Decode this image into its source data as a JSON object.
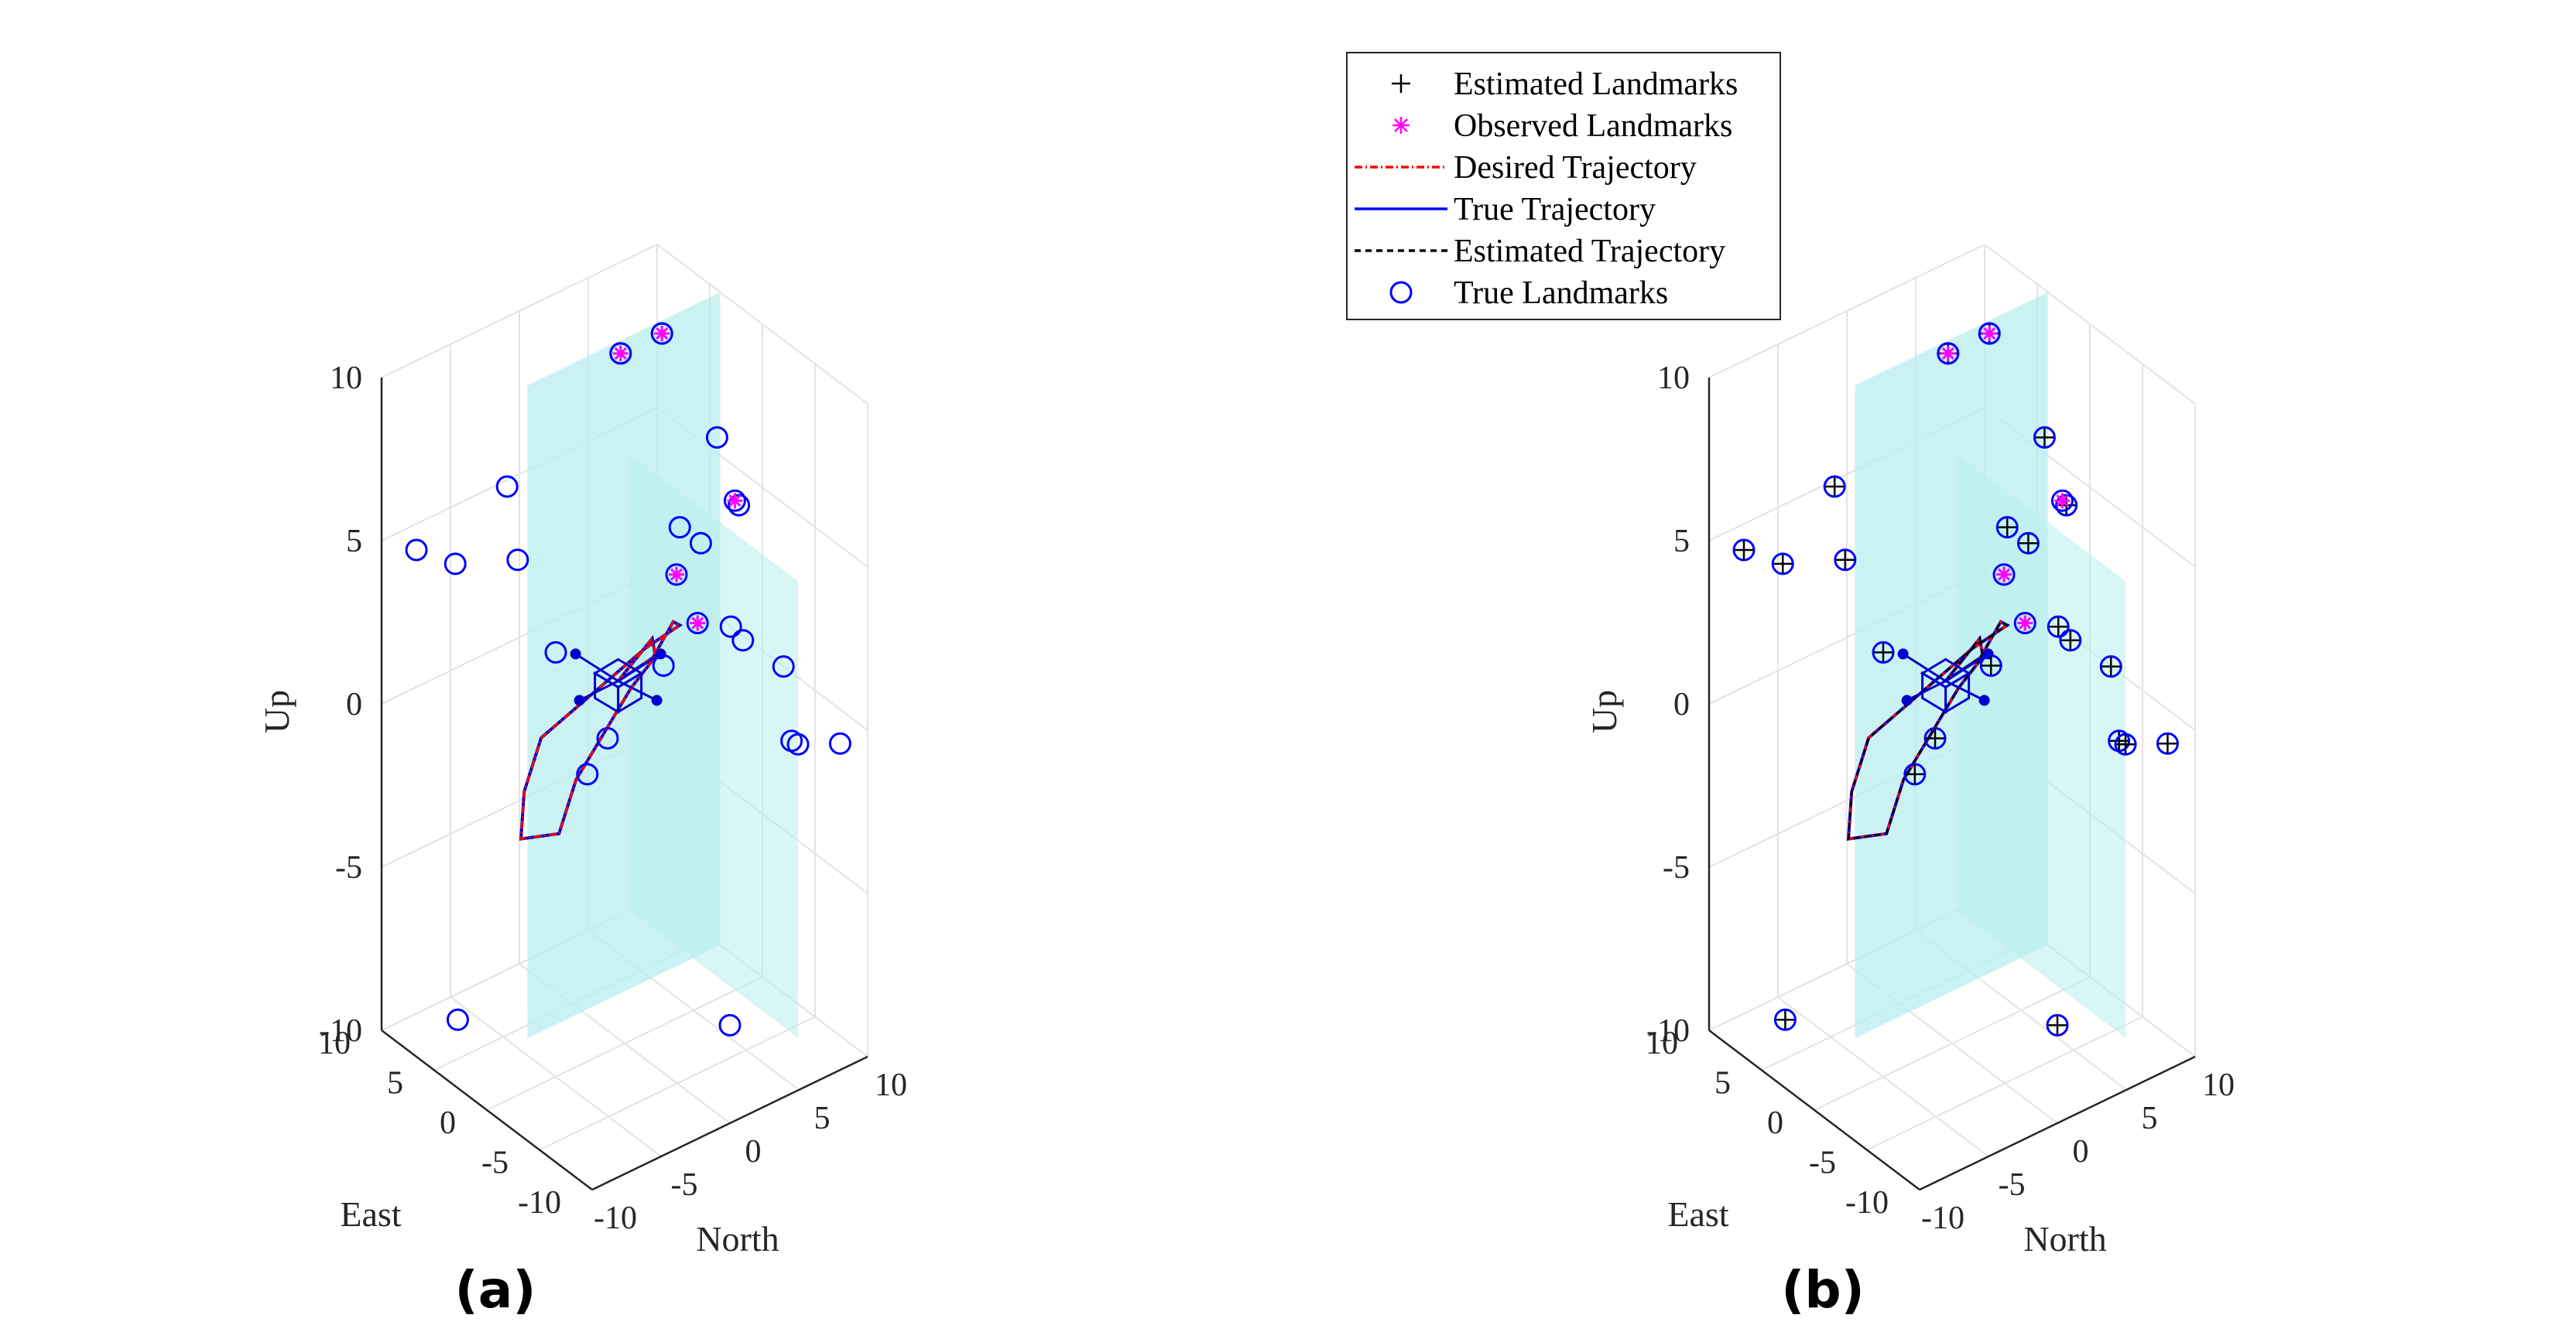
{
  "chart_data": [
    {
      "type": "scatter3d",
      "panel_label": "a",
      "zlabel": "Up",
      "xlabel": "East",
      "ylabel": "North",
      "xlim": [
        -10,
        10
      ],
      "ylim": [
        -10,
        10
      ],
      "zlim": [
        -10,
        10
      ],
      "xticks": [
        "-10",
        "-5",
        "0",
        "5",
        "10"
      ],
      "yticks": [
        "-10",
        "-5",
        "0",
        "5",
        "10"
      ],
      "zticks": [
        "-10",
        "-5",
        "0",
        "5",
        "10"
      ],
      "grid": true,
      "show_estimated_landmarks": false,
      "true_landmarks": [
        [
          8,
          -9,
          5
        ],
        [
          3,
          -10,
          6
        ],
        [
          8,
          -6,
          -10
        ],
        [
          2,
          -7,
          8
        ],
        [
          1,
          -7,
          6
        ],
        [
          0,
          -5,
          3
        ],
        [
          -3,
          -5,
          0
        ],
        [
          -1,
          -2,
          0
        ],
        [
          -5,
          -1,
          3
        ],
        [
          3,
          2,
          10
        ],
        [
          3,
          5,
          10
        ],
        [
          0,
          4,
          5
        ],
        [
          -2,
          4,
          5
        ],
        [
          -6,
          4,
          3
        ],
        [
          -3,
          6,
          6
        ],
        [
          3,
          9,
          6
        ],
        [
          3,
          10,
          0
        ],
        [
          -2,
          10,
          0
        ],
        [
          -8,
          6,
          0
        ],
        [
          -6,
          8,
          -1
        ],
        [
          -10,
          8,
          0
        ],
        [
          -10,
          0,
          -7
        ]
      ],
      "observed_landmarks": [
        [
          3,
          2,
          10
        ],
        [
          3,
          5,
          10
        ],
        [
          -1,
          3,
          4
        ],
        [
          0,
          8,
          5
        ],
        [
          -3,
          3,
          3
        ]
      ],
      "vehicle_position": [
        -2,
        -2,
        2
      ]
    },
    {
      "type": "scatter3d",
      "panel_label": "b",
      "zlabel": "Up",
      "xlabel": "East",
      "ylabel": "North",
      "xlim": [
        -10,
        10
      ],
      "ylim": [
        -10,
        10
      ],
      "zlim": [
        -10,
        10
      ],
      "xticks": [
        "-10",
        "-5",
        "0",
        "5",
        "10"
      ],
      "yticks": [
        "-10",
        "-5",
        "0",
        "5",
        "10"
      ],
      "zticks": [
        "-10",
        "-5",
        "0",
        "5",
        "10"
      ],
      "grid": true,
      "show_estimated_landmarks": true,
      "true_landmarks": [
        [
          8,
          -9,
          5
        ],
        [
          3,
          -10,
          6
        ],
        [
          8,
          -6,
          -10
        ],
        [
          2,
          -7,
          8
        ],
        [
          1,
          -7,
          6
        ],
        [
          0,
          -5,
          3
        ],
        [
          -3,
          -5,
          0
        ],
        [
          -1,
          -2,
          0
        ],
        [
          -5,
          -1,
          3
        ],
        [
          3,
          2,
          10
        ],
        [
          3,
          5,
          10
        ],
        [
          0,
          4,
          5
        ],
        [
          -2,
          4,
          5
        ],
        [
          -6,
          4,
          3
        ],
        [
          -3,
          6,
          6
        ],
        [
          3,
          9,
          6
        ],
        [
          3,
          10,
          0
        ],
        [
          -2,
          10,
          0
        ],
        [
          -8,
          6,
          0
        ],
        [
          -6,
          8,
          -1
        ],
        [
          -10,
          8,
          0
        ],
        [
          -10,
          0,
          -7
        ]
      ],
      "observed_landmarks": [
        [
          3,
          2,
          10
        ],
        [
          3,
          5,
          10
        ],
        [
          -1,
          3,
          4
        ],
        [
          0,
          8,
          5
        ],
        [
          -3,
          3,
          3
        ]
      ],
      "vehicle_position": [
        -2,
        -2,
        2
      ]
    }
  ],
  "trajectory": {
    "description_points": [
      [
        -2,
        -2,
        2
      ],
      [
        -1,
        0,
        2
      ],
      [
        0,
        2,
        2
      ],
      [
        1,
        3,
        1
      ],
      [
        2,
        2,
        0
      ],
      [
        2,
        0,
        -1
      ],
      [
        2,
        -2,
        -2
      ],
      [
        1,
        -4,
        -3
      ],
      [
        2,
        -6,
        -3
      ],
      [
        3,
        -5,
        -2
      ],
      [
        4,
        -3,
        -1
      ],
      [
        3,
        0,
        0
      ],
      [
        2,
        3,
        1
      ],
      [
        0,
        4,
        2
      ],
      [
        -2,
        2,
        3
      ],
      [
        -4,
        -1,
        3
      ],
      [
        -2,
        -2,
        2
      ]
    ]
  },
  "legend": {
    "items": [
      {
        "label": "Estimated Landmarks",
        "marker": "plus",
        "color": "#000000"
      },
      {
        "label": "Observed Landmarks",
        "marker": "asterisk",
        "color": "#ff00ff"
      },
      {
        "label": "Desired Trajectory",
        "marker": "dashdot",
        "color": "#ff0000"
      },
      {
        "label": "True Trajectory",
        "marker": "solid",
        "color": "#0000ff"
      },
      {
        "label": "Estimated Trajectory",
        "marker": "dashed",
        "color": "#000000"
      },
      {
        "label": "True Landmarks",
        "marker": "circle",
        "color": "#0000ff"
      }
    ]
  },
  "colors": {
    "plane": "#b9eeee",
    "grid": "#e3e3e3",
    "axis": "#262626",
    "true_landmark": "#0000ff",
    "observed": "#ff00ff",
    "desired": "#ff0000",
    "true_traj": "#0000cc",
    "est": "#000000"
  }
}
